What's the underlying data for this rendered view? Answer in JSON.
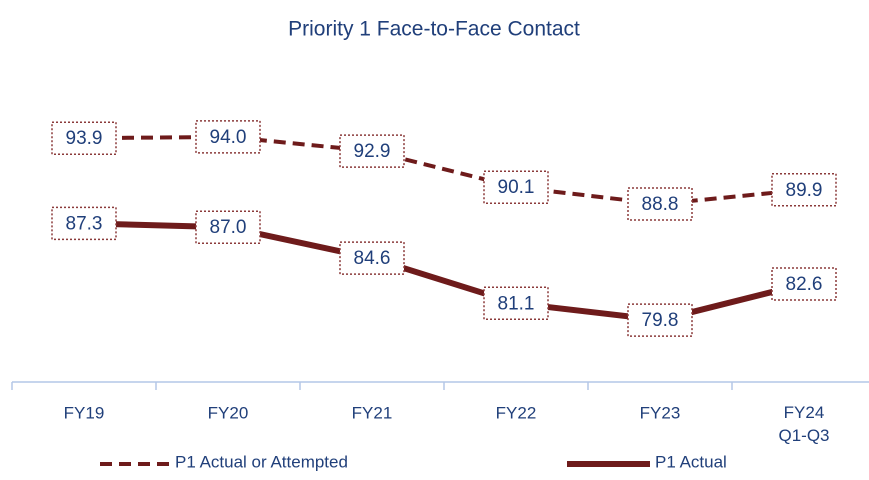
{
  "chart_data": {
    "type": "line",
    "title": "Priority 1 Face-to-Face Contact",
    "categories": [
      "FY19",
      "FY20",
      "FY21",
      "FY22",
      "FY23",
      "FY24\nQ1-Q3"
    ],
    "series": [
      {
        "name": "P1 Actual or Attempted",
        "color": "#6e1b1b",
        "dash": true,
        "values": [
          93.9,
          94.0,
          92.9,
          90.1,
          88.8,
          89.9
        ],
        "value_labels": [
          "93.9",
          "94.0",
          "92.9",
          "90.1",
          "88.8",
          "89.9"
        ]
      },
      {
        "name": "P1 Actual",
        "color": "#6e1b1b",
        "dash": false,
        "values": [
          87.3,
          87.0,
          84.6,
          81.1,
          79.8,
          82.6
        ],
        "value_labels": [
          "87.3",
          "87.0",
          "84.6",
          "81.1",
          "79.8",
          "82.6"
        ]
      }
    ],
    "ylim": [
      75,
      100
    ]
  }
}
